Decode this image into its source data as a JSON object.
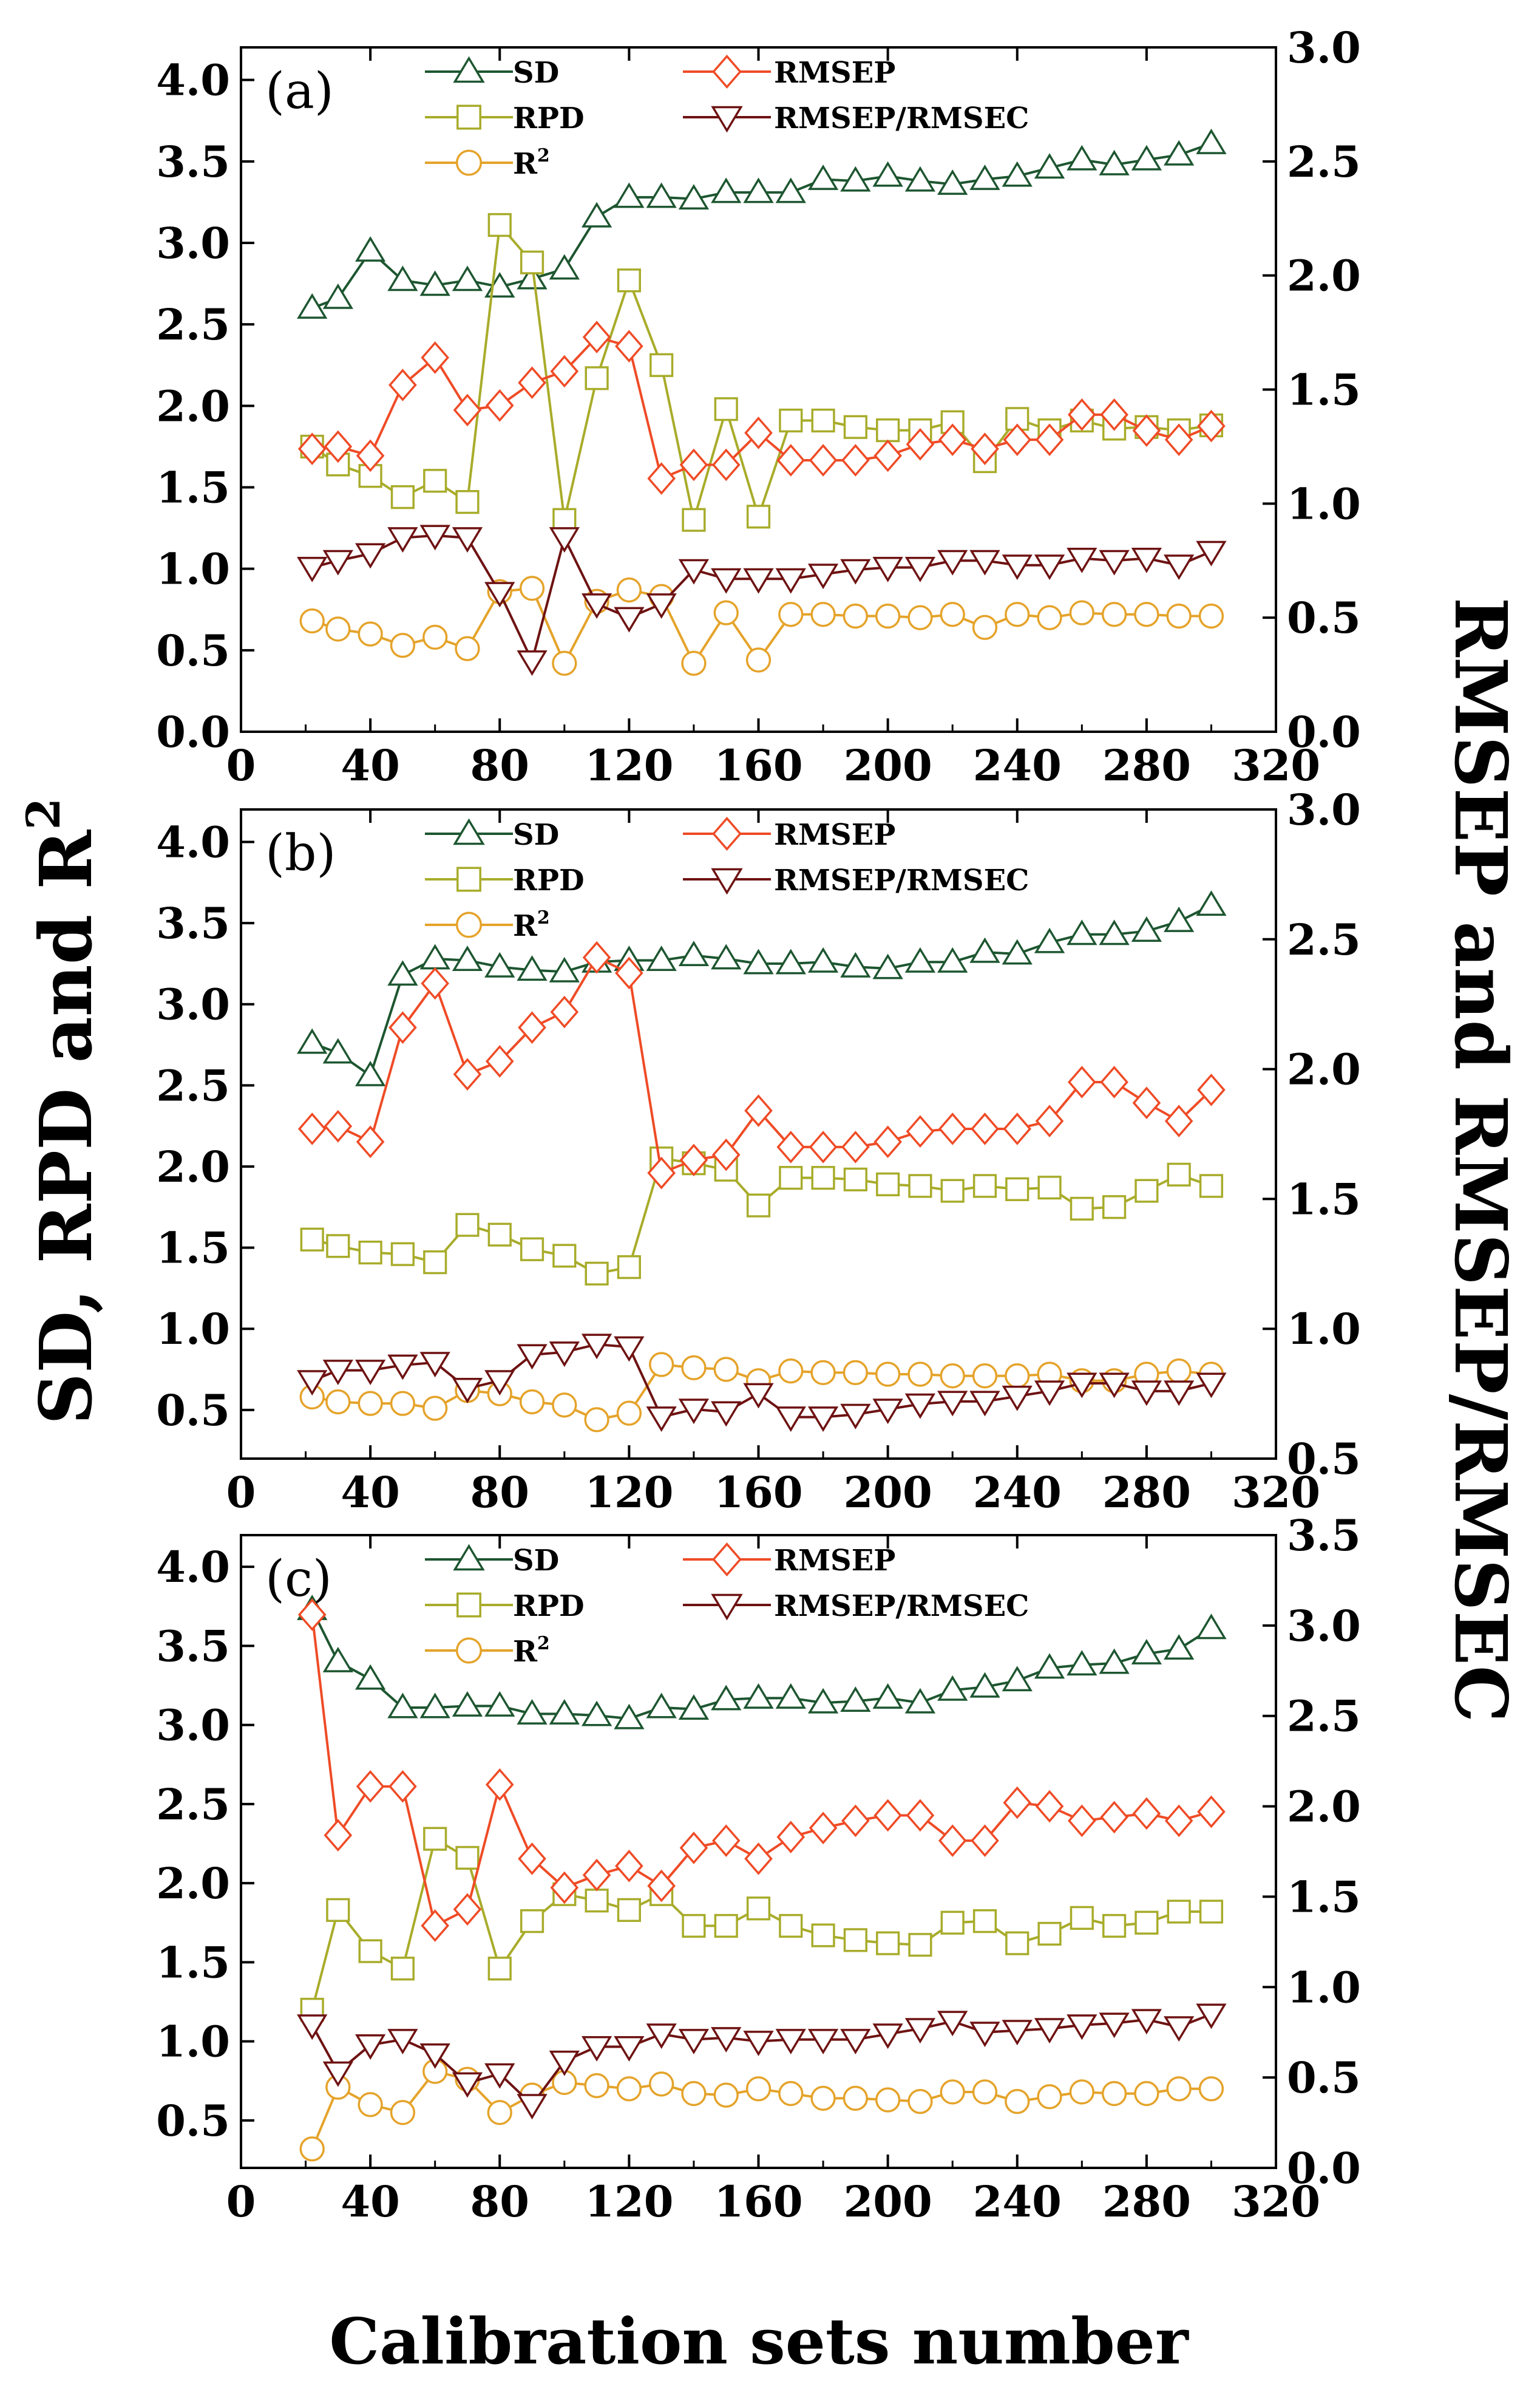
{
  "figure": {
    "ylabel_left": "SD,  RPD and R²",
    "ylabel_left_main": "SD,  RPD and R",
    "ylabel_left_sup": "2",
    "ylabel_right": "RMSEP and RMSEP/RMSEC",
    "xlabel": "Calibration sets number"
  },
  "legend": {
    "sd": "SD",
    "rpd": "RPD",
    "r2_main": "R",
    "r2_sup": "2",
    "rmsep": "RMSEP",
    "ratio": "RMSEP/RMSEC"
  },
  "colors": {
    "sd": "#1d5630",
    "rpd": "#a8ac2a",
    "r2": "#e5a32a",
    "rmsep": "#ef4b26",
    "ratio": "#6e1212"
  },
  "chart_data": [
    {
      "type": "line",
      "title": "(a)",
      "xlabel": "Calibration sets number",
      "ylabel": "SD,  RPD and R²",
      "y2label": "RMSEP and RMSEP/RMSEC",
      "xlim": [
        0,
        320
      ],
      "ylim": [
        0.0,
        4.2
      ],
      "y2lim": [
        0.0,
        3.0
      ],
      "x_ticks": [
        0,
        40,
        80,
        120,
        160,
        200,
        240,
        280,
        320
      ],
      "y_ticks": [
        "0.0",
        "0.5",
        "1.0",
        "1.5",
        "2.0",
        "2.5",
        "3.0",
        "3.5",
        "4.0"
      ],
      "y2_ticks": [
        "0.0",
        "0.5",
        "1.0",
        "1.5",
        "2.0",
        "2.5",
        "3.0"
      ],
      "x": [
        22,
        30,
        40,
        50,
        60,
        70,
        80,
        90,
        100,
        110,
        120,
        130,
        140,
        150,
        160,
        170,
        180,
        190,
        200,
        210,
        220,
        230,
        240,
        250,
        260,
        270,
        280,
        290,
        300
      ],
      "series": [
        {
          "name": "SD",
          "axis": "left",
          "marker": "triangle-up",
          "values": [
            2.6,
            2.66,
            2.95,
            2.77,
            2.74,
            2.77,
            2.73,
            2.78,
            2.84,
            3.16,
            3.28,
            3.28,
            3.27,
            3.31,
            3.31,
            3.31,
            3.39,
            3.38,
            3.41,
            3.38,
            3.36,
            3.39,
            3.41,
            3.46,
            3.51,
            3.48,
            3.51,
            3.54,
            3.61
          ]
        },
        {
          "name": "RPD",
          "axis": "left",
          "marker": "square",
          "values": [
            1.75,
            1.64,
            1.57,
            1.44,
            1.54,
            1.41,
            3.11,
            2.88,
            1.3,
            2.17,
            2.77,
            2.25,
            1.3,
            1.98,
            1.32,
            1.91,
            1.91,
            1.87,
            1.85,
            1.85,
            1.9,
            1.66,
            1.92,
            1.85,
            1.91,
            1.86,
            1.87,
            1.85,
            1.88
          ]
        },
        {
          "name": "R²",
          "axis": "left",
          "marker": "circle",
          "values": [
            0.68,
            0.63,
            0.6,
            0.53,
            0.58,
            0.51,
            0.86,
            0.88,
            0.42,
            0.8,
            0.87,
            0.83,
            0.42,
            0.73,
            0.44,
            0.72,
            0.72,
            0.71,
            0.71,
            0.7,
            0.72,
            0.64,
            0.72,
            0.7,
            0.73,
            0.72,
            0.72,
            0.71,
            0.71
          ]
        },
        {
          "name": "RMSEP",
          "axis": "right",
          "marker": "diamond",
          "values": [
            1.24,
            1.25,
            1.21,
            1.52,
            1.64,
            1.41,
            1.43,
            1.53,
            1.58,
            1.73,
            1.69,
            1.11,
            1.17,
            1.17,
            1.31,
            1.19,
            1.19,
            1.19,
            1.21,
            1.26,
            1.28,
            1.24,
            1.28,
            1.28,
            1.39,
            1.39,
            1.32,
            1.28,
            1.34
          ]
        },
        {
          "name": "RMSEP/RMSEC",
          "axis": "right",
          "marker": "triangle-down",
          "values": [
            0.72,
            0.75,
            0.78,
            0.85,
            0.86,
            0.85,
            0.61,
            0.31,
            0.85,
            0.56,
            0.5,
            0.56,
            0.71,
            0.67,
            0.67,
            0.67,
            0.69,
            0.71,
            0.72,
            0.72,
            0.75,
            0.75,
            0.73,
            0.73,
            0.76,
            0.75,
            0.76,
            0.73,
            0.79
          ]
        }
      ]
    },
    {
      "type": "line",
      "title": "(b)",
      "xlabel": "Calibration sets number",
      "ylabel": "SD,  RPD and R²",
      "y2label": "RMSEP and RMSEP/RMSEC",
      "xlim": [
        0,
        320
      ],
      "ylim": [
        0.2,
        4.2
      ],
      "y2lim": [
        0.5,
        3.0
      ],
      "x_ticks": [
        0,
        40,
        80,
        120,
        160,
        200,
        240,
        280,
        320
      ],
      "y_ticks": [
        "0.5",
        "1.0",
        "1.5",
        "2.0",
        "2.5",
        "3.0",
        "3.5",
        "4.0"
      ],
      "y2_ticks": [
        "0.5",
        "1.0",
        "1.5",
        "2.0",
        "2.5",
        "3.0"
      ],
      "x": [
        22,
        30,
        40,
        50,
        60,
        70,
        80,
        90,
        100,
        110,
        120,
        130,
        140,
        150,
        160,
        170,
        180,
        190,
        200,
        210,
        220,
        230,
        240,
        250,
        260,
        270,
        280,
        290,
        300
      ],
      "series": [
        {
          "name": "SD",
          "axis": "left",
          "marker": "triangle-up",
          "values": [
            2.76,
            2.7,
            2.56,
            3.18,
            3.28,
            3.27,
            3.23,
            3.21,
            3.2,
            3.26,
            3.27,
            3.27,
            3.3,
            3.28,
            3.25,
            3.25,
            3.26,
            3.23,
            3.22,
            3.26,
            3.26,
            3.32,
            3.31,
            3.38,
            3.43,
            3.43,
            3.45,
            3.51,
            3.61
          ]
        },
        {
          "name": "RPD",
          "axis": "left",
          "marker": "square",
          "values": [
            1.55,
            1.51,
            1.47,
            1.46,
            1.41,
            1.64,
            1.58,
            1.49,
            1.45,
            1.34,
            1.38,
            2.05,
            2.02,
            1.98,
            1.76,
            1.93,
            1.93,
            1.92,
            1.89,
            1.88,
            1.85,
            1.88,
            1.86,
            1.87,
            1.74,
            1.75,
            1.85,
            1.95,
            1.88
          ]
        },
        {
          "name": "R²",
          "axis": "left",
          "marker": "circle",
          "values": [
            0.58,
            0.55,
            0.54,
            0.54,
            0.51,
            0.62,
            0.6,
            0.55,
            0.53,
            0.44,
            0.48,
            0.78,
            0.76,
            0.75,
            0.68,
            0.74,
            0.73,
            0.73,
            0.72,
            0.72,
            0.71,
            0.71,
            0.71,
            0.72,
            0.68,
            0.68,
            0.72,
            0.74,
            0.72
          ]
        },
        {
          "name": "RMSEP",
          "axis": "right",
          "marker": "diamond",
          "values": [
            1.77,
            1.78,
            1.72,
            2.16,
            2.33,
            1.98,
            2.03,
            2.16,
            2.22,
            2.43,
            2.37,
            1.6,
            1.65,
            1.67,
            1.84,
            1.7,
            1.7,
            1.7,
            1.72,
            1.76,
            1.77,
            1.77,
            1.77,
            1.8,
            1.95,
            1.95,
            1.87,
            1.8,
            1.92
          ]
        },
        {
          "name": "RMSEP/RMSEC",
          "axis": "right",
          "marker": "triangle-down",
          "values": [
            0.8,
            0.84,
            0.84,
            0.86,
            0.87,
            0.77,
            0.8,
            0.9,
            0.91,
            0.94,
            0.93,
            0.66,
            0.69,
            0.68,
            0.75,
            0.66,
            0.66,
            0.67,
            0.69,
            0.71,
            0.72,
            0.72,
            0.74,
            0.76,
            0.79,
            0.79,
            0.76,
            0.76,
            0.79
          ]
        }
      ]
    },
    {
      "type": "line",
      "title": "(c)",
      "xlabel": "Calibration sets number",
      "ylabel": "SD,  RPD and R²",
      "y2label": "RMSEP and RMSEP/RMSEC",
      "xlim": [
        0,
        320
      ],
      "ylim": [
        0.2,
        4.2
      ],
      "y2lim": [
        0.0,
        3.5
      ],
      "x_ticks": [
        0,
        40,
        80,
        120,
        160,
        200,
        240,
        280,
        320
      ],
      "y_ticks": [
        "0.5",
        "1.0",
        "1.5",
        "2.0",
        "2.5",
        "3.0",
        "3.5",
        "4.0"
      ],
      "y2_ticks": [
        "0.0",
        "0.5",
        "1.0",
        "1.5",
        "2.0",
        "2.5",
        "3.0",
        "3.5"
      ],
      "x": [
        22,
        30,
        40,
        50,
        60,
        70,
        80,
        90,
        100,
        110,
        120,
        130,
        140,
        150,
        160,
        170,
        180,
        190,
        200,
        210,
        220,
        230,
        240,
        250,
        260,
        270,
        280,
        290,
        300
      ],
      "series": [
        {
          "name": "SD",
          "axis": "left",
          "marker": "triangle-up",
          "values": [
            3.73,
            3.4,
            3.29,
            3.11,
            3.11,
            3.12,
            3.12,
            3.07,
            3.07,
            3.06,
            3.04,
            3.11,
            3.1,
            3.16,
            3.17,
            3.17,
            3.14,
            3.15,
            3.17,
            3.14,
            3.22,
            3.24,
            3.28,
            3.36,
            3.38,
            3.39,
            3.45,
            3.48,
            3.61
          ]
        },
        {
          "name": "RPD",
          "axis": "left",
          "marker": "square",
          "values": [
            1.2,
            1.83,
            1.57,
            1.46,
            2.28,
            2.16,
            1.46,
            1.76,
            1.93,
            1.89,
            1.83,
            1.93,
            1.73,
            1.73,
            1.84,
            1.73,
            1.67,
            1.64,
            1.62,
            1.61,
            1.75,
            1.76,
            1.62,
            1.68,
            1.78,
            1.73,
            1.75,
            1.82,
            1.82
          ]
        },
        {
          "name": "R²",
          "axis": "left",
          "marker": "circle",
          "values": [
            0.32,
            0.71,
            0.6,
            0.55,
            0.81,
            0.76,
            0.55,
            0.66,
            0.74,
            0.72,
            0.7,
            0.73,
            0.67,
            0.66,
            0.7,
            0.67,
            0.64,
            0.64,
            0.63,
            0.62,
            0.68,
            0.68,
            0.62,
            0.65,
            0.68,
            0.67,
            0.67,
            0.7,
            0.7
          ]
        },
        {
          "name": "RMSEP",
          "axis": "right",
          "marker": "diamond",
          "values": [
            3.06,
            1.84,
            2.11,
            2.11,
            1.34,
            1.43,
            2.12,
            1.71,
            1.55,
            1.62,
            1.67,
            1.56,
            1.77,
            1.81,
            1.71,
            1.83,
            1.88,
            1.92,
            1.95,
            1.95,
            1.81,
            1.81,
            2.02,
            2.0,
            1.92,
            1.94,
            1.96,
            1.92,
            1.97
          ]
        },
        {
          "name": "RMSEP/RMSEC",
          "axis": "right",
          "marker": "triangle-down",
          "values": [
            0.79,
            0.53,
            0.68,
            0.71,
            0.63,
            0.47,
            0.52,
            0.35,
            0.59,
            0.67,
            0.67,
            0.74,
            0.71,
            0.72,
            0.7,
            0.71,
            0.71,
            0.71,
            0.74,
            0.77,
            0.81,
            0.75,
            0.76,
            0.77,
            0.79,
            0.8,
            0.82,
            0.78,
            0.85
          ]
        }
      ]
    }
  ]
}
